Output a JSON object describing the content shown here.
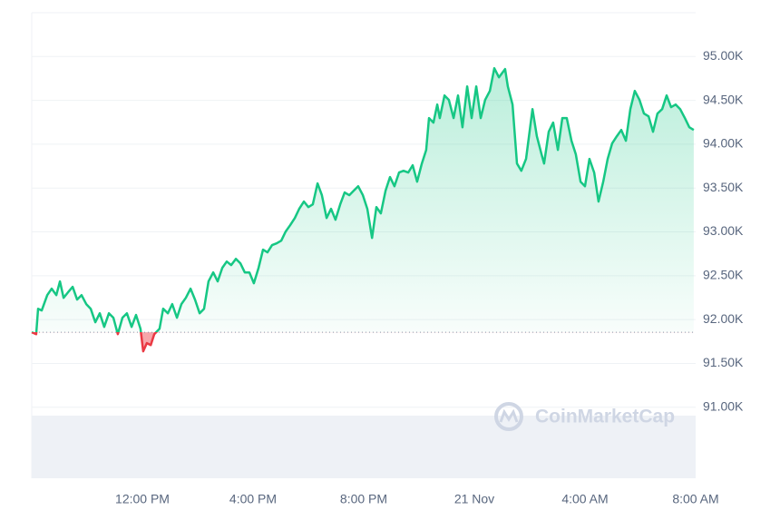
{
  "chart_data": {
    "type": "line",
    "watermark": "CoinMarketCap",
    "xlim": [
      0,
      24
    ],
    "xticks": [
      {
        "value": 4,
        "label": "12:00 PM"
      },
      {
        "value": 8,
        "label": "4:00 PM"
      },
      {
        "value": 12,
        "label": "8:00 PM"
      },
      {
        "value": 16,
        "label": "21 Nov"
      },
      {
        "value": 20,
        "label": "4:00 AM"
      },
      {
        "value": 24,
        "label": "8:00 AM"
      }
    ],
    "ylim": [
      90190,
      95500
    ],
    "yticks": [
      {
        "value": 91000,
        "label": "91.00K"
      },
      {
        "value": 91500,
        "label": "91.50K"
      },
      {
        "value": 92000,
        "label": "92.00K"
      },
      {
        "value": 92500,
        "label": "92.50K"
      },
      {
        "value": 93000,
        "label": "93.00K"
      },
      {
        "value": 93500,
        "label": "93.50K"
      },
      {
        "value": 94000,
        "label": "94.00K"
      },
      {
        "value": 94500,
        "label": "94.50K"
      },
      {
        "value": 95000,
        "label": "95.00K"
      }
    ],
    "grid": true,
    "baseline": 91855,
    "up_color": "#16c784",
    "down_color": "#ea3943",
    "x": [
      0,
      0.16,
      0.23,
      0.36,
      0.56,
      0.72,
      0.89,
      1.02,
      1.15,
      1.31,
      1.48,
      1.64,
      1.8,
      1.97,
      2.13,
      2.3,
      2.46,
      2.62,
      2.79,
      2.95,
      3.11,
      3.28,
      3.44,
      3.61,
      3.77,
      3.93,
      4.03,
      4.16,
      4.3,
      4.43,
      4.62,
      4.75,
      4.92,
      5.08,
      5.25,
      5.41,
      5.57,
      5.74,
      5.9,
      6.07,
      6.23,
      6.39,
      6.56,
      6.72,
      6.89,
      7.05,
      7.21,
      7.38,
      7.54,
      7.7,
      7.87,
      8.03,
      8.2,
      8.36,
      8.52,
      8.69,
      8.85,
      9.02,
      9.18,
      9.34,
      9.51,
      9.67,
      9.84,
      10,
      10.16,
      10.33,
      10.49,
      10.66,
      10.82,
      10.98,
      11.15,
      11.31,
      11.48,
      11.64,
      11.8,
      11.97,
      12.13,
      12.3,
      12.46,
      12.62,
      12.79,
      12.95,
      13.11,
      13.28,
      13.44,
      13.61,
      13.77,
      13.93,
      14.1,
      14.26,
      14.36,
      14.52,
      14.66,
      14.75,
      14.92,
      15.08,
      15.25,
      15.41,
      15.57,
      15.74,
      15.9,
      16.07,
      16.23,
      16.39,
      16.56,
      16.72,
      16.89,
      17.11,
      17.21,
      17.38,
      17.54,
      17.7,
      17.87,
      18.1,
      18.26,
      18.43,
      18.52,
      18.69,
      18.85,
      19.02,
      19.18,
      19.34,
      19.51,
      19.67,
      19.84,
      20,
      20.16,
      20.33,
      20.49,
      20.66,
      20.82,
      20.98,
      21.15,
      21.31,
      21.48,
      21.64,
      21.8,
      21.97,
      22.13,
      22.3,
      22.46,
      22.62,
      22.79,
      22.95,
      23.11,
      23.28,
      23.44,
      23.61,
      23.77,
      23.93
    ],
    "values": [
      91855,
      91834,
      92124,
      92104,
      92279,
      92352,
      92279,
      92435,
      92248,
      92311,
      92373,
      92228,
      92279,
      92176,
      92124,
      91969,
      92072,
      91917,
      92072,
      92021,
      91834,
      92021,
      92072,
      91917,
      92052,
      91896,
      91638,
      91731,
      91710,
      91834,
      91896,
      92124,
      92072,
      92176,
      92021,
      92176,
      92248,
      92352,
      92228,
      92072,
      92124,
      92435,
      92538,
      92435,
      92590,
      92662,
      92621,
      92693,
      92642,
      92538,
      92538,
      92414,
      92590,
      92797,
      92766,
      92849,
      92869,
      92900,
      93004,
      93076,
      93159,
      93263,
      93346,
      93283,
      93314,
      93553,
      93418,
      93159,
      93263,
      93139,
      93314,
      93449,
      93418,
      93470,
      93521,
      93418,
      93263,
      92931,
      93283,
      93211,
      93470,
      93625,
      93521,
      93677,
      93697,
      93677,
      93760,
      93573,
      93780,
      93935,
      94298,
      94246,
      94453,
      94298,
      94556,
      94505,
      94298,
      94556,
      94194,
      94660,
      94298,
      94660,
      94298,
      94505,
      94608,
      94867,
      94763,
      94857,
      94660,
      94453,
      93780,
      93697,
      93832,
      94401,
      94091,
      93884,
      93780,
      94142,
      94246,
      93935,
      94298,
      94298,
      94039,
      93884,
      93573,
      93521,
      93832,
      93677,
      93346,
      93573,
      93832,
      94008,
      94091,
      94163,
      94039,
      94401,
      94608,
      94505,
      94350,
      94318,
      94142,
      94350,
      94401,
      94556,
      94422,
      94453,
      94401,
      94298,
      94194,
      94163
    ]
  }
}
